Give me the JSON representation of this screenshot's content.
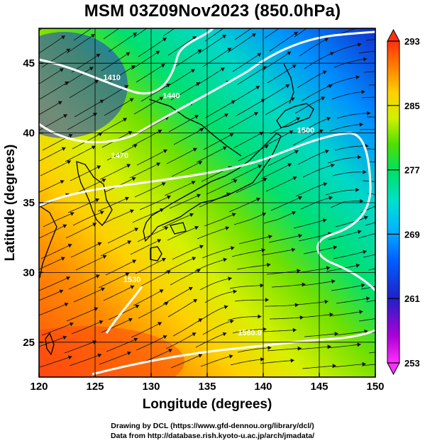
{
  "title": "MSM 03Z09Nov2023 (850.0hPa)",
  "x_axis": {
    "label": "Longitude (degrees)",
    "range": [
      120,
      150
    ],
    "ticks": [
      120,
      125,
      130,
      135,
      140,
      145,
      150
    ]
  },
  "y_axis": {
    "label": "Latitude  (degrees)",
    "range": [
      22.5,
      47.5
    ],
    "ticks": [
      25,
      30,
      35,
      40,
      45
    ]
  },
  "colorbar": {
    "range": [
      253,
      293
    ],
    "ticks": [
      253,
      261,
      269,
      277,
      285,
      293
    ],
    "colors": [
      "#ff30ff",
      "#a000d0",
      "#2020c8",
      "#0050ff",
      "#00b0ff",
      "#00e0d0",
      "#00e060",
      "#40e000",
      "#c0f000",
      "#ffe000",
      "#ff9000",
      "#ff4010"
    ]
  },
  "contours": [
    {
      "label": "1410",
      "lon": 126.5,
      "lat": 43.8
    },
    {
      "label": "1440",
      "lon": 131.8,
      "lat": 42.5
    },
    {
      "label": "1470",
      "lon": 127.2,
      "lat": 38.2
    },
    {
      "label": "1500",
      "lon": 143.8,
      "lat": 40.0
    },
    {
      "label": "1530",
      "lon": 128.3,
      "lat": 29.3
    },
    {
      "label": "1560.0",
      "lon": 138.8,
      "lat": 25.5
    }
  ],
  "credits": {
    "line1": "Drawing by DCL (https://www.gfd-dennou.org/library/dcl/)",
    "line2": "Data from http://database.rish.kyoto-u.ac.jp/arch/jmadata/"
  }
}
